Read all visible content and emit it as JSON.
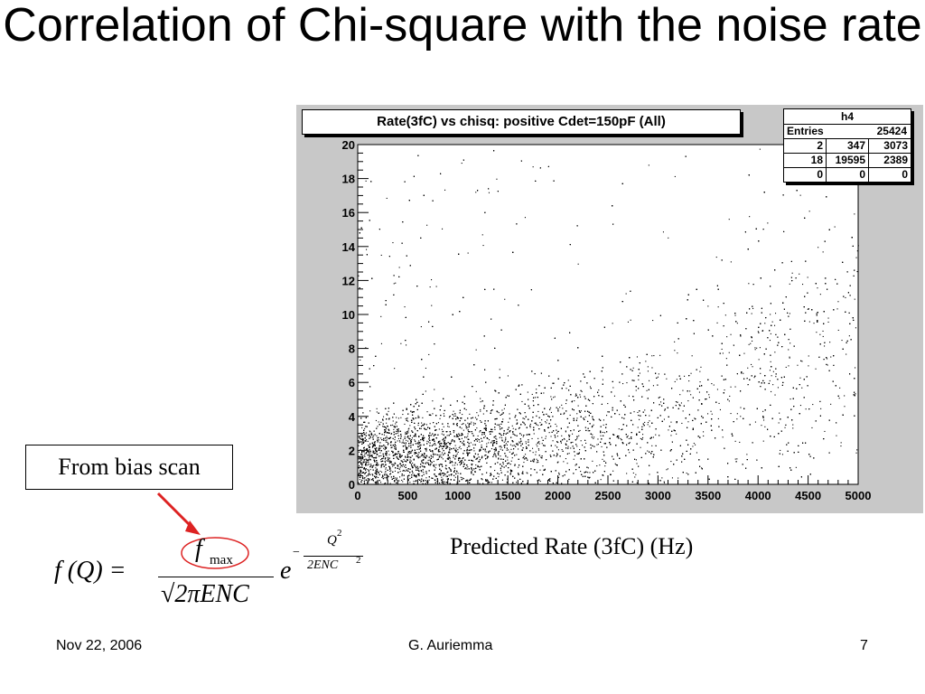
{
  "slide": {
    "title": "Correlation of Chi-square with the noise rate",
    "footer_date": "Nov 22, 2006",
    "footer_author": "G. Auriemma",
    "footer_page": "7"
  },
  "annotation": {
    "box_text": "From bias scan",
    "arrow_color": "#dd2222",
    "circle_color": "#dd2222"
  },
  "formula": {
    "lhs": "f (Q) =",
    "numerator": "f",
    "numerator_sub": "max",
    "denominator": "√2πENC",
    "base": "e",
    "exp_sign": "−",
    "exp_num": "Q",
    "exp_num_power": "2",
    "exp_den": "2ENC",
    "exp_den_power": "2"
  },
  "chart_data": {
    "type": "scatter",
    "title": "Rate(3fC) vs chisq: positive Cdet=150pF (All)",
    "xlabel": "Predicted Rate (3fC) (Hz)",
    "ylabel": "",
    "xlim": [
      0,
      5000
    ],
    "ylim": [
      0,
      20
    ],
    "x_ticks": [
      "0",
      "500",
      "1000",
      "1500",
      "2000",
      "2500",
      "3000",
      "3500",
      "4000",
      "4500",
      "5000"
    ],
    "y_ticks": [
      "0",
      "2",
      "4",
      "6",
      "8",
      "10",
      "12",
      "14",
      "16",
      "18",
      "20"
    ],
    "grid": false,
    "legend": "none",
    "marker_color": "#000000",
    "stats": {
      "name": "h4",
      "entries_label": "Entries",
      "entries_value": "25424",
      "overflow_grid": [
        [
          "2",
          "347",
          "3073"
        ],
        [
          "18",
          "19595",
          "2389"
        ],
        [
          "0",
          "0",
          "0"
        ]
      ]
    },
    "trend": {
      "description_points_x": [
        0,
        500,
        1000,
        1500,
        2000,
        2500,
        3000,
        3500,
        4000,
        4500,
        5000
      ],
      "median_y": [
        1.5,
        2.0,
        2.1,
        2.4,
        2.8,
        3.3,
        4.0,
        5.0,
        6.3,
        8.0,
        10.0
      ]
    }
  }
}
